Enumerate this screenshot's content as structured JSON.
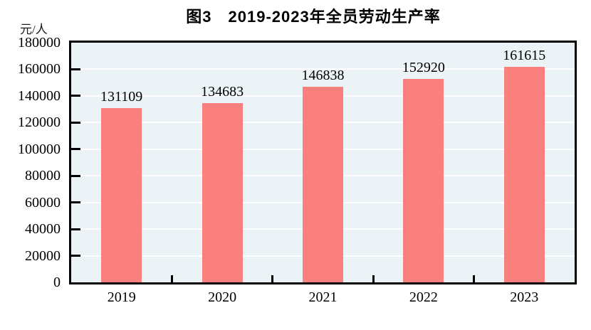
{
  "chart_data": {
    "type": "bar",
    "title": "图3　2019-2023年全员劳动生产率",
    "ylabel": "元/人",
    "xlabel": "",
    "categories": [
      "2019",
      "2020",
      "2021",
      "2022",
      "2023"
    ],
    "values": [
      131109,
      134683,
      146838,
      152920,
      161615
    ],
    "ylim": [
      0,
      180000
    ],
    "ytick_step": 20000,
    "yticks": [
      0,
      20000,
      40000,
      60000,
      80000,
      100000,
      120000,
      140000,
      160000,
      180000
    ],
    "grid": true,
    "legend_position": "none",
    "colors": {
      "bar": "#FA7F7F",
      "plot_background": "#EBF3F6",
      "gridline": "#FFFFFF",
      "axis": "#000000",
      "text": "#000000",
      "page_background": "#FFFFFF"
    }
  }
}
